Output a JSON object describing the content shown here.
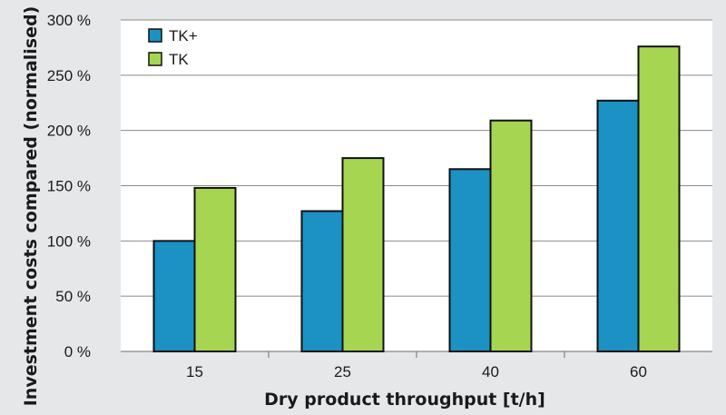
{
  "colors": {
    "background": "#e6e7e9",
    "plot_background": "#ffffff",
    "grid": "#8a8a8a",
    "tk_plus": "#1b91c4",
    "tk": "#a6d651"
  },
  "chart_data": {
    "type": "bar",
    "title": "",
    "xlabel": "Dry product throughput [t/h]",
    "ylabel": "Investment costs compared (normalised)",
    "categories": [
      "15",
      "25",
      "40",
      "60"
    ],
    "ylim": [
      0,
      300
    ],
    "yticks": [
      0,
      50,
      100,
      150,
      200,
      250,
      300
    ],
    "ytick_labels": [
      "0 %",
      "50 %",
      "100 %",
      "150 %",
      "200 %",
      "250 %",
      "300 %"
    ],
    "grid": true,
    "legend_position": "top-left",
    "series": [
      {
        "name": "TK+",
        "color": "#1b91c4",
        "values": [
          100,
          127,
          165,
          227
        ]
      },
      {
        "name": "TK",
        "color": "#a6d651",
        "values": [
          148,
          175,
          209,
          276
        ]
      }
    ]
  }
}
